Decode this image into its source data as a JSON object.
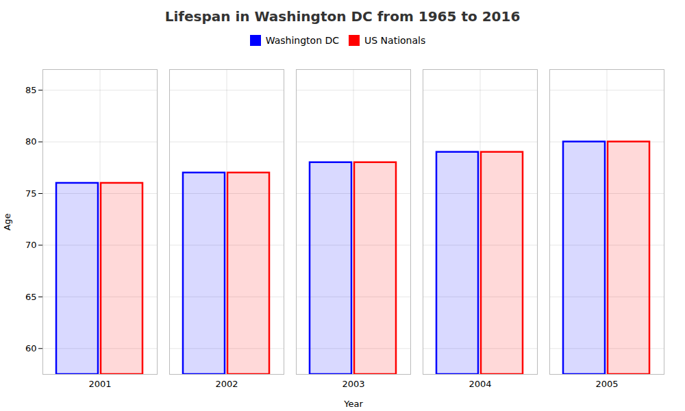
{
  "chart_data": {
    "type": "bar",
    "title": "Lifespan in Washington DC from 1965 to 2016",
    "xlabel": "Year",
    "ylabel": "Age",
    "categories": [
      "2001",
      "2002",
      "2003",
      "2004",
      "2005"
    ],
    "series": [
      {
        "name": "Washington DC",
        "color": "#0000ff",
        "values": [
          76,
          77,
          78,
          79,
          80
        ]
      },
      {
        "name": "US Nationals",
        "color": "#ff0000",
        "values": [
          76,
          77,
          78,
          79,
          80
        ]
      }
    ],
    "ylim": [
      57.5,
      87
    ],
    "yticks": [
      60,
      65,
      70,
      75,
      80,
      85
    ],
    "grid": true,
    "legend": "top"
  }
}
